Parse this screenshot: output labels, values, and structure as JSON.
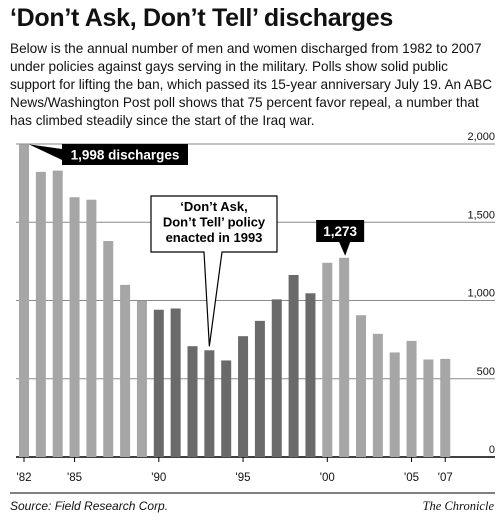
{
  "title": "‘Don’t Ask, Don’t Tell’ discharges",
  "intro": "Below is the annual number of men and women discharged from 1982 to 2007 under policies against gays serving in the military. Polls show solid public support for lifting the ban, which passed its 15-year anniversary July 19. An ABC News/Washington Post poll shows that 75 percent favor repeal, a number that has climbed steadily since the start of the Iraq war.",
  "source": "Source: Field Research Corp.",
  "credit": "The Chronicle",
  "chart_data": {
    "type": "bar",
    "x": [
      1982,
      1983,
      1984,
      1985,
      1986,
      1987,
      1988,
      1989,
      1990,
      1991,
      1992,
      1993,
      1994,
      1995,
      1996,
      1997,
      1998,
      1999,
      2000,
      2001,
      2002,
      2003,
      2004,
      2005,
      2006,
      2007
    ],
    "values": [
      1998,
      1822,
      1830,
      1660,
      1644,
      1380,
      1100,
      997,
      941,
      949,
      708,
      682,
      617,
      772,
      870,
      1007,
      1163,
      1046,
      1241,
      1273,
      906,
      787,
      668,
      742,
      623,
      627
    ],
    "x_tick_labels": [
      {
        "year": 1982,
        "label": "'82"
      },
      {
        "year": 1985,
        "label": "'85"
      },
      {
        "year": 1990,
        "label": "'90"
      },
      {
        "year": 1995,
        "label": "'95"
      },
      {
        "year": 2000,
        "label": "'00"
      },
      {
        "year": 2005,
        "label": "'05"
      },
      {
        "year": 2007,
        "label": "'07"
      }
    ],
    "y_ticks": [
      0,
      500,
      1000,
      1500,
      2000
    ],
    "y_tick_labels": [
      "0",
      "500",
      "1,000",
      "1,500",
      "2,000"
    ],
    "ylim": [
      0,
      2000
    ],
    "y_axis_side": "right",
    "grid": true,
    "colors": {
      "light_bar": "#a6a6a6",
      "dark_bar": "#6a6a6a",
      "grid": "#8a8a8a",
      "callout_bg": "#000000",
      "callout_text": "#ffffff"
    },
    "dark_years": [
      1990,
      1991,
      1992,
      1993,
      1994,
      1995,
      1996,
      1997,
      1998,
      1999
    ],
    "annotations": [
      {
        "year": 1982,
        "text": "1,998 discharges",
        "style": "dark"
      },
      {
        "year": 1993,
        "text": "‘Don’t Ask,\nDon’t Tell’ policy\nenacted in 1993",
        "style": "light"
      },
      {
        "year": 2001,
        "text": "1,273",
        "style": "dark"
      }
    ]
  }
}
